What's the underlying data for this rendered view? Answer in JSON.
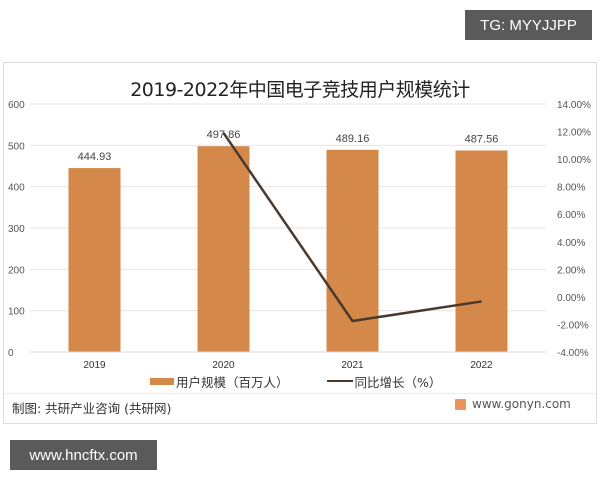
{
  "overlay": {
    "tg_label": "TG: MYYJJPP",
    "site_label": "www.hncftx.com"
  },
  "chart": {
    "title": "2019-2022年中国电子竞技用户规模统计",
    "legend": {
      "bar_label": "用户规模（百万人）",
      "line_label": "同比增长（%）"
    },
    "source": "制图: 共研产业咨询 (共研网)",
    "brand": "www.gonyn.com",
    "colors": {
      "bar": "#D4894A",
      "line": "#4A3A2C",
      "grid": "#E6E6E6"
    }
  },
  "chart_data": {
    "type": "bar",
    "title": "2019-2022年中国电子竞技用户规模统计",
    "categories": [
      "2019",
      "2020",
      "2021",
      "2022"
    ],
    "series": [
      {
        "name": "用户规模（百万人）",
        "type": "bar",
        "axis": "left",
        "values": [
          444.93,
          497.86,
          489.16,
          487.56
        ]
      },
      {
        "name": "同比增长（%）",
        "type": "line",
        "axis": "right",
        "values": [
          null,
          11.9,
          -1.75,
          -0.33
        ]
      }
    ],
    "left_axis": {
      "ylim": [
        0,
        600
      ],
      "ticks": [
        "0",
        "100",
        "200",
        "300",
        "400",
        "500",
        "600"
      ]
    },
    "right_axis": {
      "ylim": [
        -4,
        14
      ],
      "ticks": [
        "-4.00%",
        "-2.00%",
        "0.00%",
        "2.00%",
        "4.00%",
        "6.00%",
        "8.00%",
        "10.00%",
        "12.00%",
        "14.00%"
      ]
    },
    "xlabel": "",
    "ylabel": "",
    "grid": true,
    "legend_position": "bottom",
    "data_labels": [
      "444.93",
      "497.86",
      "489.16",
      "487.56"
    ]
  }
}
